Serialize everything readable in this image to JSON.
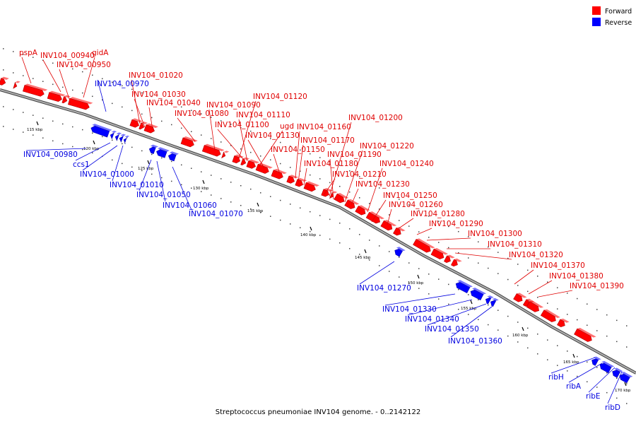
{
  "caption": "Streptococcus pneumoniae INV104 genome. - 0..2142122",
  "legend": [
    {
      "label": "Forward",
      "color": "#ff0000"
    },
    {
      "label": "Reverse",
      "color": "#0000ff"
    }
  ],
  "colors": {
    "forward": "#ff0000",
    "reverse": "#0000ff",
    "backbone": "#808080"
  },
  "scale_ticks": [
    {
      "label": "115 kbp"
    },
    {
      "label": "120 kbp"
    },
    {
      "label": "125 kbp"
    },
    {
      "label": "130 kbp"
    },
    {
      "label": "135 kbp"
    },
    {
      "label": "140 kbp"
    },
    {
      "label": "145 kbp"
    },
    {
      "label": "150 kbp"
    },
    {
      "label": "155 kbp"
    },
    {
      "label": "160 kbp"
    },
    {
      "label": "165 kbp"
    },
    {
      "label": "170 kbp"
    }
  ],
  "forward_labels": [
    "pspA",
    "INV104_00940",
    "gidA",
    "INV104_00950",
    "INV104_01020",
    "INV104_01030",
    "INV104_01040",
    "INV104_01080",
    "INV104_01090",
    "INV104_01120",
    "INV104_01110",
    "INV104_01100",
    "ugd",
    "INV104_01130",
    "INV104_01150",
    "INV104_01160",
    "INV104_01200",
    "INV104_01170",
    "INV104_01220",
    "INV104_01190",
    "INV104_01180",
    "INV104_01240",
    "INV104_01210",
    "INV104_01230",
    "INV104_01250",
    "INV104_01260",
    "INV104_01280",
    "INV104_01290",
    "INV104_01300",
    "INV104_01310",
    "INV104_01320",
    "INV104_01370",
    "INV104_01380",
    "INV104_01390"
  ],
  "reverse_labels": [
    "INV104_00970",
    "INV104_00980",
    "ccs1",
    "INV104_01000",
    "INV104_01010",
    "INV104_01050",
    "INV104_01060",
    "INV104_01070",
    "INV104_01270",
    "INV104_01330",
    "INV104_01340",
    "INV104_01350",
    "INV104_01360",
    "ribH",
    "ribA",
    "ribE",
    "ribD"
  ]
}
